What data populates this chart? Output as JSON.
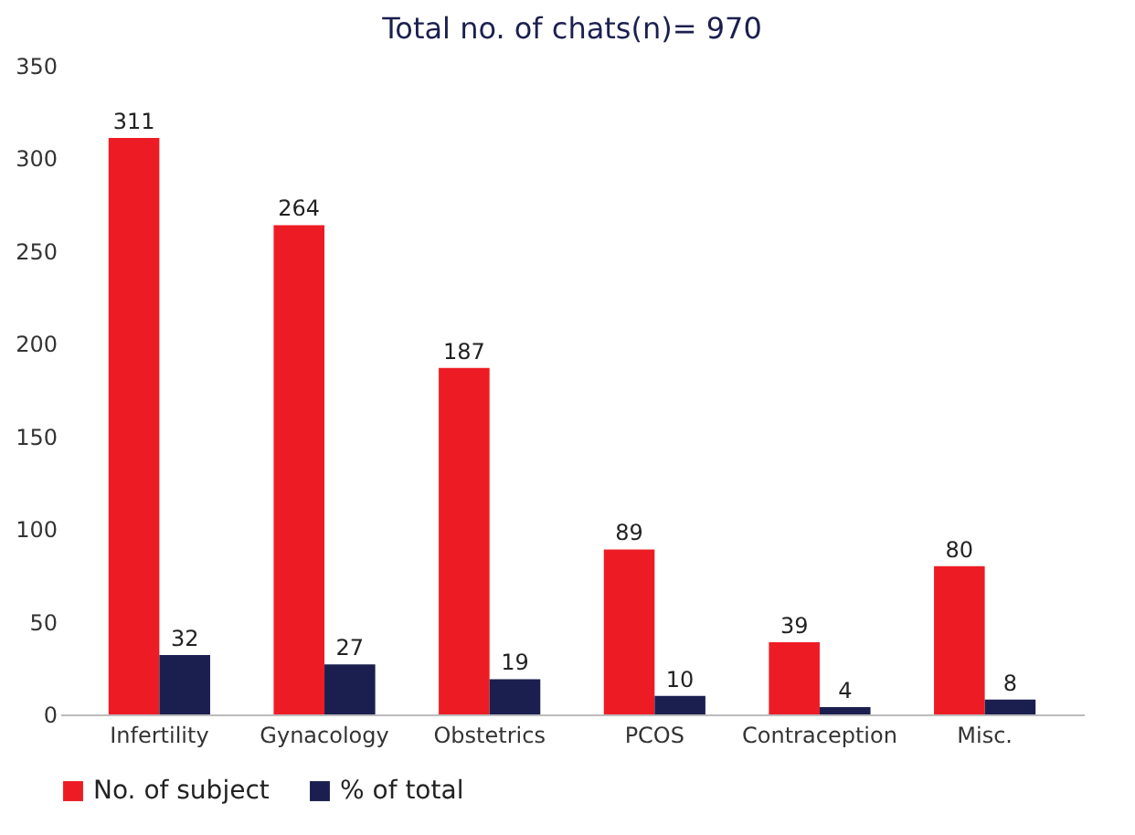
{
  "chart_data": {
    "type": "bar",
    "title": "Total no. of chats(n)= 970",
    "categories": [
      "Infertility",
      "Gynacology",
      "Obstetrics",
      "PCOS",
      "Contraception",
      "Misc."
    ],
    "series": [
      {
        "name": "No. of subject",
        "color": "#ed1c24",
        "values": [
          311,
          264,
          187,
          89,
          39,
          80
        ]
      },
      {
        "name": "% of total",
        "color": "#1b1f4f",
        "values": [
          32,
          27,
          19,
          10,
          4,
          8
        ]
      }
    ],
    "ylim": [
      0,
      350
    ],
    "yticks": [
      0,
      50,
      100,
      150,
      200,
      250,
      300,
      350
    ],
    "grid": false,
    "legend": "bottom",
    "data_labels": true
  }
}
